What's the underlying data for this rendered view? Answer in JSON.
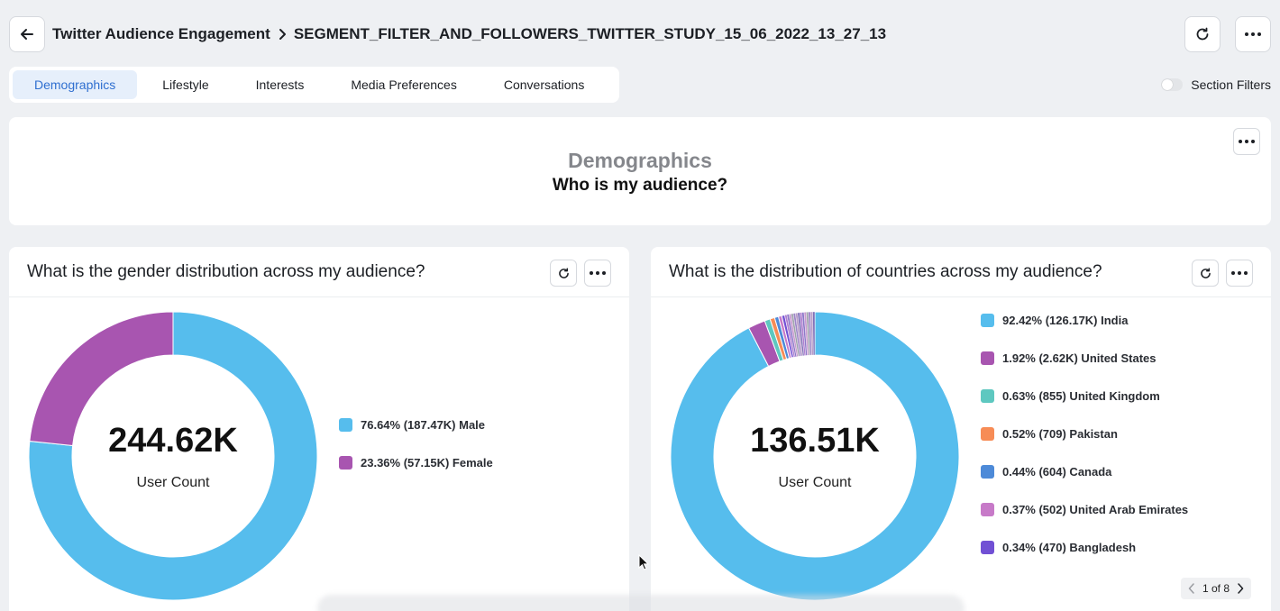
{
  "header": {
    "report_title": "Twitter Audience Engagement",
    "segment_name": "SEGMENT_FILTER_AND_FOLLOWERS_TWITTER_STUDY_15_06_2022_13_27_13"
  },
  "tabs": [
    {
      "label": "Demographics",
      "active": true
    },
    {
      "label": "Lifestyle",
      "active": false
    },
    {
      "label": "Interests",
      "active": false
    },
    {
      "label": "Media Preferences",
      "active": false
    },
    {
      "label": "Conversations",
      "active": false
    }
  ],
  "section_filters_label": "Section Filters",
  "section": {
    "name": "Demographics",
    "question": "Who is my audience?"
  },
  "gender_card": {
    "title": "What is the gender distribution across my audience?",
    "total": "244.62K",
    "total_label": "User Count",
    "chart_data": {
      "type": "pie",
      "categories": [
        "Male",
        "Female"
      ],
      "values": [
        76.64,
        23.36
      ],
      "counts": [
        "187.47K",
        "57.15K"
      ],
      "colors": [
        "#56bded",
        "#a855b0"
      ],
      "legend_labels": [
        "76.64% (187.47K) Male",
        "23.36% (57.15K) Female"
      ]
    }
  },
  "country_card": {
    "title": "What is the distribution of countries across my audience?",
    "total": "136.51K",
    "total_label": "User Count",
    "pager": "1 of 8",
    "chart_data": {
      "type": "pie",
      "categories": [
        "India",
        "United States",
        "United Kingdom",
        "Pakistan",
        "Canada",
        "United Arab Emirates",
        "Bangladesh"
      ],
      "values": [
        92.42,
        1.92,
        0.63,
        0.52,
        0.44,
        0.37,
        0.34
      ],
      "counts": [
        "126.17K",
        "2.62K",
        "855",
        "709",
        "604",
        "502",
        "470"
      ],
      "colors": [
        "#56bded",
        "#a855b0",
        "#5ec8c0",
        "#f78c56",
        "#4d8ad8",
        "#c77ac8",
        "#7150d4"
      ],
      "legend_labels": [
        "92.42% (126.17K) India",
        "1.92% (2.62K) United States",
        "0.63% (855) United Kingdom",
        "0.52% (709) Pakistan",
        "0.44% (604) Canada",
        "0.37% (502) United Arab Emirates",
        "0.34% (470) Bangladesh"
      ]
    }
  }
}
